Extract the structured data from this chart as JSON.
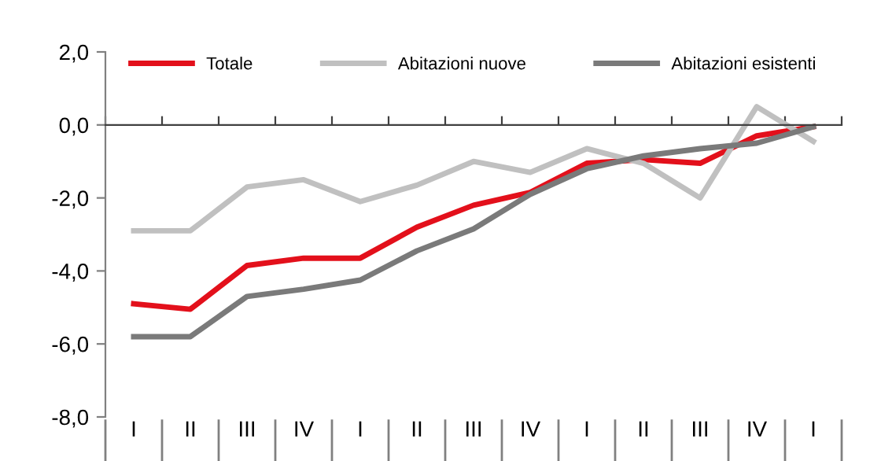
{
  "chart_data": {
    "type": "line",
    "categories": [
      "I",
      "II",
      "III",
      "IV",
      "I",
      "II",
      "III",
      "IV",
      "I",
      "II",
      "III",
      "IV",
      "I"
    ],
    "series": [
      {
        "name": "Totale",
        "color": "#e3101b",
        "values": [
          -4.9,
          -5.05,
          -3.85,
          -3.65,
          -3.65,
          -2.8,
          -2.2,
          -1.85,
          -1.05,
          -0.95,
          -1.05,
          -0.3,
          -0.05
        ]
      },
      {
        "name": "Abitazioni nuove",
        "color": "#c0c0c0",
        "values": [
          -2.9,
          -2.9,
          -1.7,
          -1.5,
          -2.1,
          -1.65,
          -1.0,
          -1.3,
          -0.65,
          -1.05,
          -2.0,
          0.5,
          -0.45
        ]
      },
      {
        "name": "Abitazioni esistenti",
        "color": "#7a7a7a",
        "values": [
          -5.8,
          -5.8,
          -4.7,
          -4.5,
          -4.25,
          -3.45,
          -2.85,
          -1.9,
          -1.2,
          -0.85,
          -0.65,
          -0.5,
          -0.05
        ]
      }
    ],
    "ylim": [
      -8,
      2
    ],
    "yticks": [
      {
        "value": 2,
        "label": "2,0"
      },
      {
        "value": 0,
        "label": "0,0"
      },
      {
        "value": -2,
        "label": "-2,0"
      },
      {
        "value": -4,
        "label": "-4,0"
      },
      {
        "value": -6,
        "label": "-6,0"
      },
      {
        "value": -8,
        "label": "-8,0"
      }
    ],
    "legend": "top",
    "marker": "none",
    "line_style": "solid"
  }
}
